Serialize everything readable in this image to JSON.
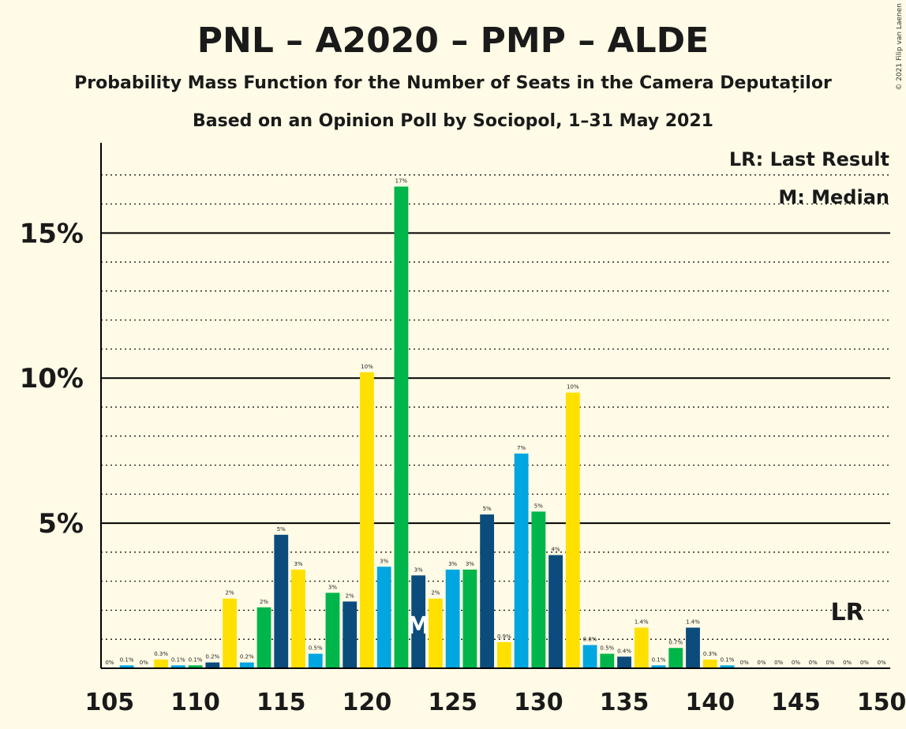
{
  "title": "PNL – A2020 – PMP – ALDE",
  "subtitle": "Probability Mass Function for the Number of Seats in the Camera Deputaților",
  "subtitle2": "Based on an Opinion Poll by Sociopol, 1–31 May 2021",
  "copyright": "© 2021 Filip van Laenen",
  "legend": {
    "lr": "LR: Last Result",
    "m": "M: Median"
  },
  "markers": {
    "lr_label": "LR",
    "m_label": "M",
    "median_seat": 123,
    "last_result_seat": 148
  },
  "colors": {
    "background": "#FFFBE6",
    "palette": [
      "#1F77B4",
      "#00A6E0",
      "#00B54A",
      "#0B4C7D",
      "#FFE000"
    ]
  },
  "chart_data": {
    "type": "bar",
    "x": [
      105,
      106,
      107,
      108,
      109,
      110,
      111,
      112,
      113,
      114,
      115,
      116,
      117,
      118,
      119,
      120,
      121,
      122,
      123,
      124,
      125,
      126,
      127,
      128,
      129,
      130,
      131,
      132,
      133,
      134,
      135,
      136,
      137,
      138,
      139,
      140,
      141,
      142,
      143,
      144,
      145,
      146,
      147,
      148,
      149,
      150
    ],
    "values": [
      0,
      0.1,
      0,
      0.3,
      0.1,
      0.1,
      0.2,
      2.4,
      0.2,
      2.1,
      4.6,
      3.4,
      0.5,
      2.6,
      2.3,
      10.2,
      3.5,
      16.6,
      3.2,
      2.4,
      3.4,
      3.4,
      5.3,
      0.9,
      7.4,
      5.4,
      3.9,
      9.5,
      0.8,
      0.5,
      0.4,
      1.4,
      0.1,
      0.7,
      1.4,
      0.3,
      0.1,
      0,
      0,
      0,
      0,
      0,
      0,
      0,
      0,
      0
    ],
    "labels": [
      "0%",
      "0.1%",
      "0%",
      "0.3%",
      "0.1%",
      "0.1%",
      "0.2%",
      "2%",
      "0.2%",
      "2%",
      "5%",
      "3%",
      "0.5%",
      "3%",
      "2%",
      "10%",
      "3%",
      "17%",
      "3%",
      "2%",
      "3%",
      "3%",
      "5%",
      "0.9%",
      "7%",
      "5%",
      "4%",
      "10%",
      "0.8%",
      "0.5%",
      "0.4%",
      "1.4%",
      "0.1%",
      "0.7%",
      "1.4%",
      "0.3%",
      "0.1%",
      "0%",
      "0%",
      "0%",
      "0%",
      "0%",
      "0%",
      "0%",
      "0%",
      "0%"
    ],
    "bar_colors": [
      "#00B54A",
      "#00A6E0",
      "#0B4C7D",
      "#FFE000",
      "#00A6E0",
      "#00B54A",
      "#0B4C7D",
      "#FFE000",
      "#00A6E0",
      "#00B54A",
      "#0B4C7D",
      "#FFE000",
      "#00A6E0",
      "#00B54A",
      "#0B4C7D",
      "#FFE000",
      "#00A6E0",
      "#00B54A",
      "#0B4C7D",
      "#FFE000",
      "#00A6E0",
      "#00B54A",
      "#0B4C7D",
      "#FFE000",
      "#00A6E0",
      "#00B54A",
      "#0B4C7D",
      "#FFE000",
      "#00A6E0",
      "#00B54A",
      "#0B4C7D",
      "#FFE000",
      "#00A6E0",
      "#00B54A",
      "#0B4C7D",
      "#FFE000",
      "#00A6E0",
      "#00B54A",
      "#0B4C7D",
      "#FFE000",
      "#00A6E0",
      "#00B54A",
      "#0B4C7D",
      "#FFE000",
      "#00A6E0",
      "#00B54A"
    ],
    "x_ticks": [
      105,
      110,
      115,
      120,
      125,
      130,
      135,
      140,
      145,
      150
    ],
    "y_ticks": [
      5,
      10,
      15
    ],
    "y_tick_labels": [
      "5%",
      "10%",
      "15%"
    ],
    "ylim": [
      0,
      18
    ],
    "xlabel": "",
    "ylabel": "",
    "grid": true,
    "legend_position": "top-right"
  }
}
